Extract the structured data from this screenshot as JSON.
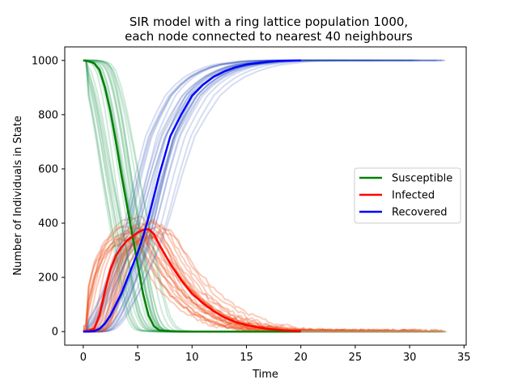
{
  "chart_data": {
    "type": "line",
    "title_line1": "SIR model with a ring lattice population 1000,",
    "title_line2": "each node connected to nearest 40 neighbours",
    "xlabel": "Time",
    "ylabel": "Number of Individuals in State",
    "xlim": [
      -1.7,
      35.2
    ],
    "ylim": [
      -50,
      1050
    ],
    "xticks": [
      0,
      5,
      10,
      15,
      20,
      25,
      30,
      35
    ],
    "yticks": [
      0,
      200,
      400,
      600,
      800,
      1000
    ],
    "legend_position": "center-right",
    "colors": {
      "Susceptible": "#008000",
      "Infected": "#ff0000",
      "Recovered": "#0000ff",
      "sim_susceptible": "#2ca05a",
      "sim_infected": "#ee5522",
      "sim_recovered": "#3355bb",
      "sim_tail": "#c8a080"
    },
    "series": [
      {
        "name": "Susceptible",
        "x": [
          0,
          0.5,
          1,
          1.5,
          2,
          2.5,
          3,
          3.5,
          4,
          4.5,
          5,
          5.5,
          6,
          6.5,
          7,
          8,
          9,
          10,
          12,
          15,
          20
        ],
        "y": [
          1000,
          997,
          990,
          965,
          900,
          810,
          700,
          580,
          470,
          360,
          250,
          140,
          60,
          20,
          5,
          1,
          0,
          0,
          0,
          0,
          0
        ]
      },
      {
        "name": "Infected",
        "x": [
          0,
          0.5,
          1,
          1.5,
          2,
          2.5,
          3,
          3.5,
          4,
          4.5,
          5,
          5.5,
          6,
          6.5,
          7,
          7.5,
          8,
          9,
          10,
          11,
          12,
          13,
          14,
          15,
          16,
          17,
          18,
          19,
          20
        ],
        "y": [
          1,
          3,
          10,
          60,
          150,
          230,
          280,
          310,
          335,
          350,
          365,
          375,
          378,
          360,
          320,
          285,
          250,
          190,
          140,
          105,
          75,
          52,
          35,
          24,
          16,
          10,
          6,
          3,
          2
        ]
      },
      {
        "name": "Recovered",
        "x": [
          0,
          0.5,
          1,
          1.5,
          2,
          2.5,
          3,
          3.5,
          4,
          4.5,
          5,
          5.5,
          6,
          6.5,
          7,
          7.5,
          8,
          9,
          10,
          11,
          12,
          13,
          14,
          15,
          16,
          17,
          18,
          20
        ],
        "y": [
          0,
          0,
          2,
          10,
          30,
          60,
          100,
          140,
          190,
          240,
          290,
          350,
          420,
          500,
          580,
          650,
          720,
          800,
          870,
          910,
          940,
          960,
          975,
          985,
          990,
          995,
          998,
          1000
        ]
      }
    ]
  }
}
